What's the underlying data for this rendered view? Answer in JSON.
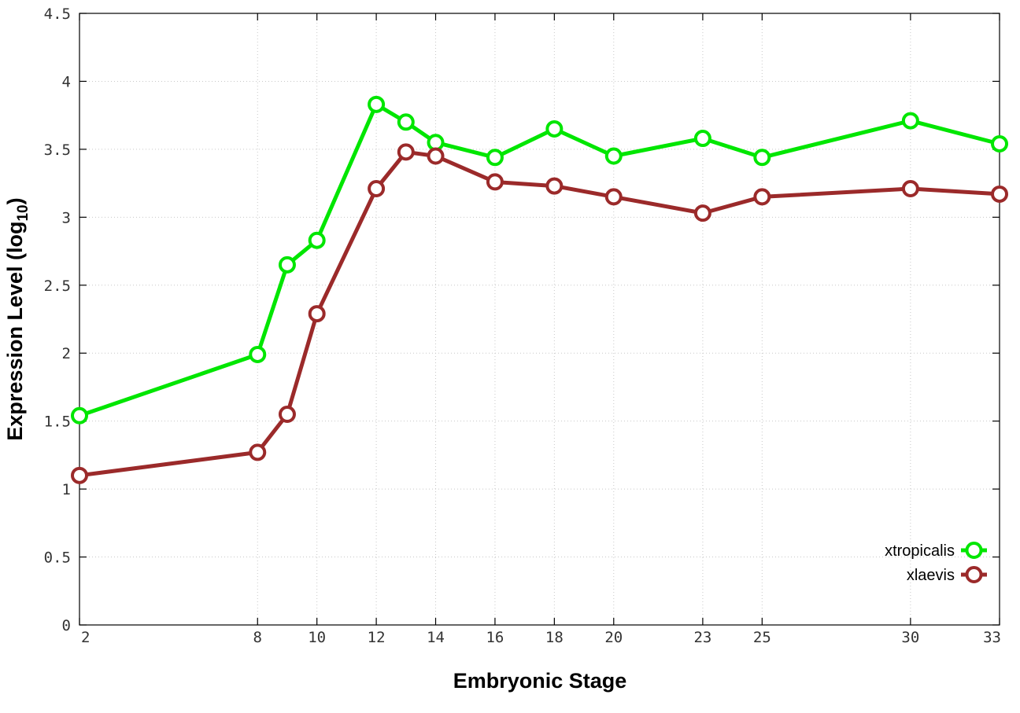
{
  "chart_data": {
    "type": "line",
    "xlabel": "Embryonic Stage",
    "ylabel_main": "Expression Level (log",
    "ylabel_sub": "10",
    "ylabel_close": ")",
    "xlim": [
      2,
      33
    ],
    "ylim": [
      0,
      4.5
    ],
    "x_ticks": [
      2,
      8,
      10,
      12,
      14,
      16,
      18,
      20,
      23,
      25,
      30,
      33
    ],
    "y_ticks": [
      0,
      0.5,
      1,
      1.5,
      2,
      2.5,
      3,
      3.5,
      4,
      4.5
    ],
    "y_tick_labels": [
      "0",
      "0.5",
      "1",
      "1.5",
      "2",
      "2.5",
      "3",
      "3.5",
      "4",
      "4.5"
    ],
    "grid": true,
    "legend_position": "bottom-right",
    "x": [
      2,
      8,
      9,
      10,
      12,
      13,
      14,
      16,
      18,
      20,
      23,
      25,
      30,
      33
    ],
    "series": [
      {
        "name": "xtropicalis",
        "color": "#00e600",
        "values": [
          1.54,
          1.99,
          2.65,
          2.83,
          3.83,
          3.7,
          3.55,
          3.44,
          3.65,
          3.45,
          3.58,
          3.44,
          3.71,
          3.54
        ]
      },
      {
        "name": "xlaevis",
        "color": "#9b2a2a",
        "values": [
          1.1,
          1.27,
          1.55,
          2.29,
          3.21,
          3.48,
          3.45,
          3.26,
          3.23,
          3.15,
          3.03,
          3.15,
          3.21,
          3.17
        ]
      }
    ]
  }
}
